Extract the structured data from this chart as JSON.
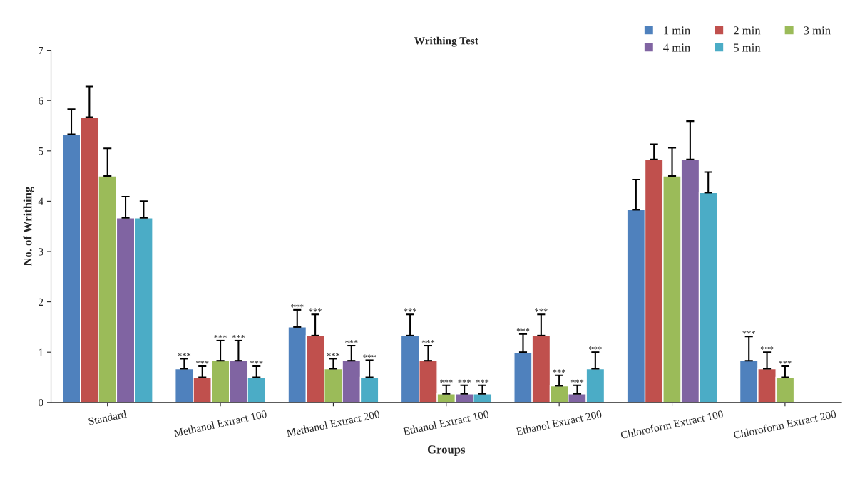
{
  "chart_data": {
    "type": "bar",
    "title": "Writhing Test",
    "xlabel": "Groups",
    "ylabel": "No. of Writhing",
    "categories": [
      "Standard",
      "Methanol Extract 100",
      "Methanol Extract 200",
      "Ethanol Extract 100",
      "Ethanol Extract 200",
      "Chloroform Extract 100",
      "Chloroform Extract 200"
    ],
    "ylim": [
      0,
      7
    ],
    "yticks": [
      0,
      1,
      2,
      3,
      4,
      5,
      6,
      7
    ],
    "grid": false,
    "legend": "top right",
    "series": [
      {
        "name": "1 min",
        "color": "#4f81bd",
        "values": [
          5.33,
          0.67,
          1.5,
          1.33,
          1.0,
          3.83,
          0.83
        ],
        "errors": [
          [
            5.33,
            5.83
          ],
          [
            0.67,
            0.87
          ],
          [
            1.5,
            1.84
          ],
          [
            1.33,
            1.75
          ],
          [
            1.0,
            1.36
          ],
          [
            3.83,
            4.43
          ],
          [
            0.83,
            1.31
          ]
        ],
        "value_labels": [
          null,
          "***",
          "***",
          "***",
          "***",
          null,
          "***"
        ]
      },
      {
        "name": "2 min",
        "color": "#c0504d",
        "values": [
          5.67,
          0.5,
          1.33,
          0.83,
          1.33,
          4.83,
          0.67
        ],
        "errors": [
          [
            5.67,
            6.28
          ],
          [
            0.5,
            0.72
          ],
          [
            1.33,
            1.75
          ],
          [
            0.83,
            1.13
          ],
          [
            1.33,
            1.75
          ],
          [
            4.83,
            5.13
          ],
          [
            0.67,
            1.0
          ]
        ],
        "value_labels": [
          null,
          "***",
          "***",
          "***",
          "***",
          null,
          "***"
        ]
      },
      {
        "name": "3 min",
        "color": "#9bbb59",
        "values": [
          4.5,
          0.83,
          0.67,
          0.17,
          0.33,
          4.5,
          0.5
        ],
        "errors": [
          [
            4.5,
            5.05
          ],
          [
            0.83,
            1.23
          ],
          [
            0.67,
            0.87
          ],
          [
            0.17,
            0.34
          ],
          [
            0.33,
            0.54
          ],
          [
            4.5,
            5.06
          ],
          [
            0.5,
            0.72
          ]
        ],
        "value_labels": [
          null,
          "***",
          "***",
          "***",
          "***",
          null,
          "***"
        ]
      },
      {
        "name": "4 min",
        "color": "#8064a2",
        "values": [
          3.67,
          0.83,
          0.83,
          0.17,
          0.17,
          4.83,
          null
        ],
        "errors": [
          [
            3.67,
            4.09
          ],
          [
            0.83,
            1.23
          ],
          [
            0.83,
            1.13
          ],
          [
            0.17,
            0.34
          ],
          [
            0.17,
            0.34
          ],
          [
            4.83,
            5.59
          ],
          null
        ],
        "value_labels": [
          null,
          "***",
          "***",
          "***",
          "***",
          null,
          null
        ]
      },
      {
        "name": "5 min",
        "color": "#4bacc6",
        "values": [
          3.67,
          0.5,
          0.5,
          0.17,
          0.67,
          4.17,
          null
        ],
        "errors": [
          [
            3.67,
            4.0
          ],
          [
            0.5,
            0.72
          ],
          [
            0.5,
            0.84
          ],
          [
            0.17,
            0.34
          ],
          [
            0.67,
            1.0
          ],
          [
            4.17,
            4.58
          ],
          null
        ],
        "value_labels": [
          null,
          "***",
          "***",
          "***",
          "***",
          null,
          null
        ]
      }
    ]
  }
}
